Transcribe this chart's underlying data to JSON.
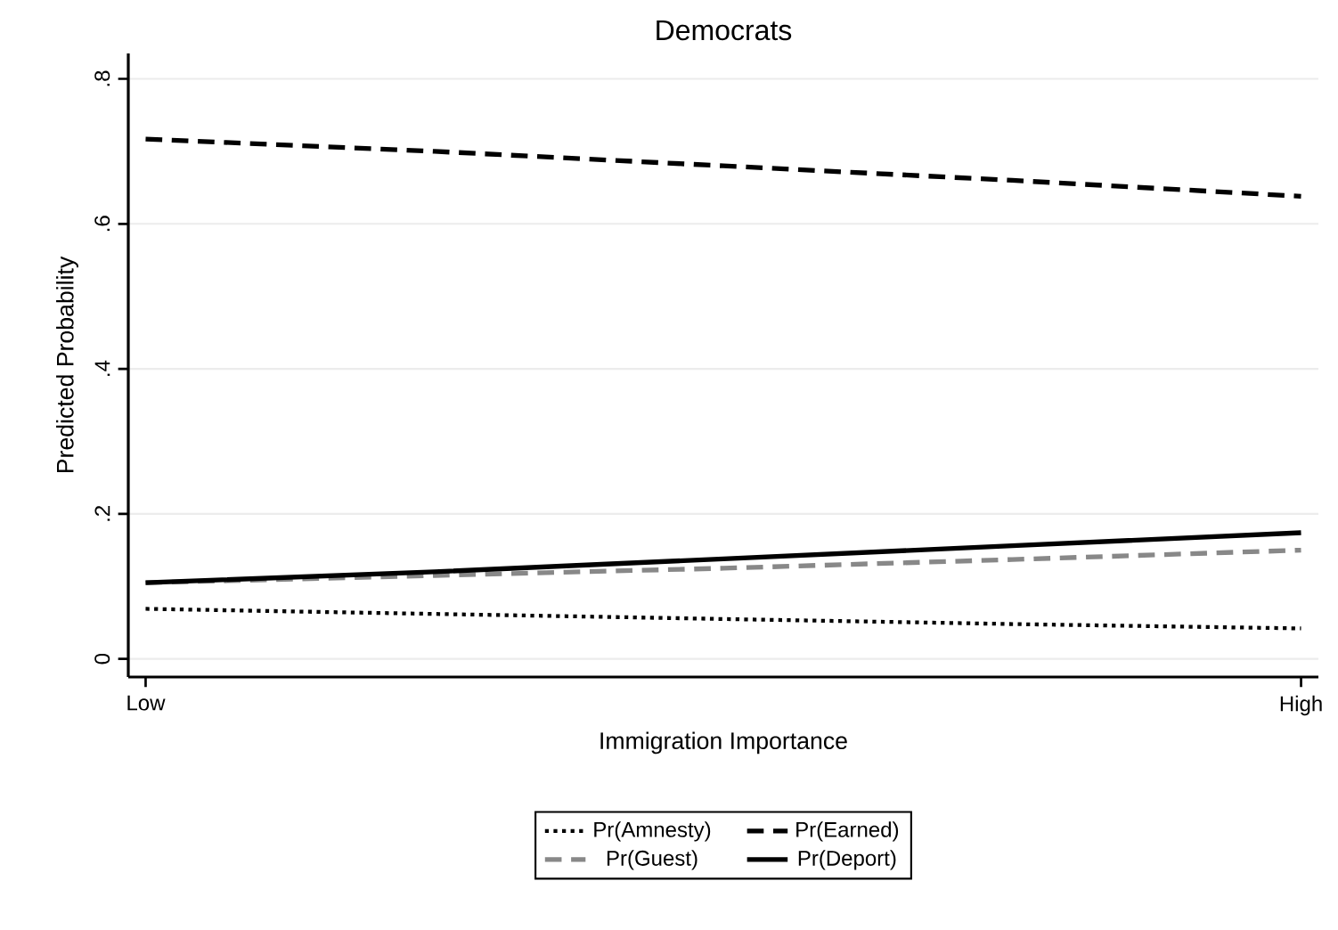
{
  "chart_data": {
    "type": "line",
    "title": "Democrats",
    "xlabel": "Immigration Importance",
    "ylabel": "Predicted Probability",
    "categories": [
      "Low",
      null,
      null,
      null,
      "High"
    ],
    "series": [
      {
        "name": "Pr(Amnesty)",
        "color": "#000000",
        "line_style": "dotted",
        "values": [
          0.069,
          0.062,
          0.055,
          0.048,
          0.042
        ]
      },
      {
        "name": "Pr(Earned)",
        "color": "#000000",
        "line_style": "dashed",
        "values": [
          0.717,
          0.7,
          0.68,
          0.66,
          0.638
        ]
      },
      {
        "name": "Pr(Guest)",
        "color": "#888888",
        "line_style": "dashed",
        "values": [
          0.105,
          0.115,
          0.125,
          0.137,
          0.15
        ]
      },
      {
        "name": "Pr(Deport)",
        "color": "#000000",
        "line_style": "solid",
        "values": [
          0.105,
          0.12,
          0.138,
          0.156,
          0.174
        ]
      }
    ],
    "ylim": [
      -0.025,
      0.835
    ],
    "yticks": [
      0,
      {
        "value": 0.2,
        "label": ".2"
      },
      {
        "value": 0.4,
        "label": ".4"
      },
      {
        "value": 0.6,
        "label": ".6"
      },
      {
        "value": 0.8,
        "label": ".8"
      }
    ],
    "grid": "y",
    "legend": "bottom",
    "marker": "none"
  }
}
